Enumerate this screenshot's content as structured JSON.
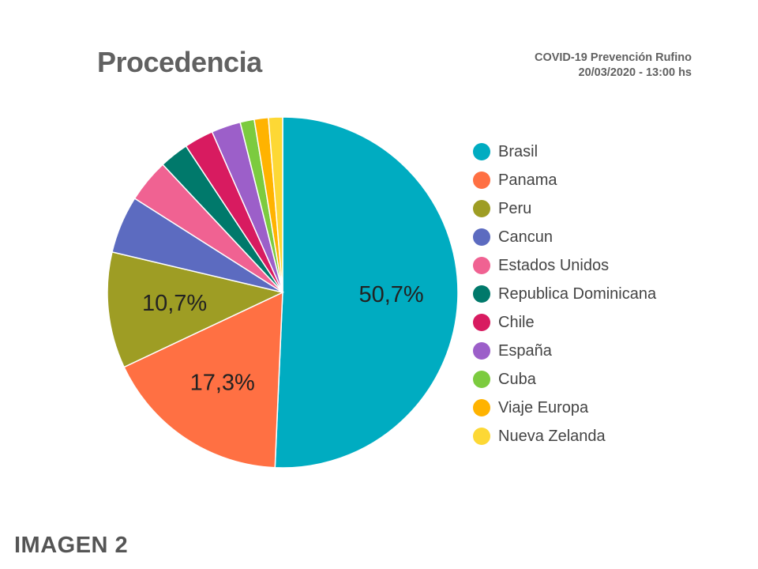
{
  "header": {
    "title": "Procedencia",
    "source_line1": "COVID-19 Prevención Rufino",
    "source_line2": "20/03/2020 - 13:00 hs"
  },
  "footer": {
    "label": "IMAGEN 2"
  },
  "chart_data": {
    "type": "pie",
    "title": "Procedencia",
    "legend_position": "right",
    "start_angle_deg": 0,
    "direction": "clockwise",
    "slices": [
      {
        "name": "Brasil",
        "value": 50.7,
        "label": "50,7%",
        "color": "#00ACC1"
      },
      {
        "name": "Panama",
        "value": 17.3,
        "label": "17,3%",
        "color": "#FF7043"
      },
      {
        "name": "Peru",
        "value": 10.7,
        "label": "10,7%",
        "color": "#9E9D24"
      },
      {
        "name": "Cancun",
        "value": 5.3,
        "label": "",
        "color": "#5C6BC0"
      },
      {
        "name": "Estados Unidos",
        "value": 4.0,
        "label": "",
        "color": "#F06292"
      },
      {
        "name": "Republica Dominicana",
        "value": 2.7,
        "label": "",
        "color": "#00796B"
      },
      {
        "name": "Chile",
        "value": 2.7,
        "label": "",
        "color": "#D81B60"
      },
      {
        "name": "España",
        "value": 2.7,
        "label": "",
        "color": "#9C5FC9"
      },
      {
        "name": "Cuba",
        "value": 1.3,
        "label": "",
        "color": "#7CCB3F"
      },
      {
        "name": "Viaje Europa",
        "value": 1.3,
        "label": "",
        "color": "#FFB300"
      },
      {
        "name": "Nueva Zelanda",
        "value": 1.3,
        "label": "",
        "color": "#FDD835"
      }
    ]
  }
}
